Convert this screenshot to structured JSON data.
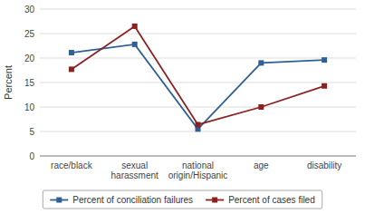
{
  "chart_data": {
    "type": "line",
    "categories": [
      "race/black",
      "sexual\nharassment",
      "national\norigin/Hispanic",
      "age",
      "disability"
    ],
    "series": [
      {
        "name": "Percent of conciliation failures",
        "color": "#2e6096",
        "marker": "square",
        "values": [
          21.1,
          22.8,
          5.5,
          19.0,
          19.6
        ]
      },
      {
        "name": "Percent of cases filed",
        "color": "#8b2222",
        "marker": "square",
        "values": [
          17.7,
          26.5,
          6.4,
          10.0,
          14.3
        ]
      }
    ],
    "ylabel": "Percent",
    "ylim": [
      0,
      30
    ],
    "yticks": [
      0,
      5,
      10,
      15,
      20,
      25,
      30
    ],
    "grid": true,
    "legend": "bottom"
  }
}
